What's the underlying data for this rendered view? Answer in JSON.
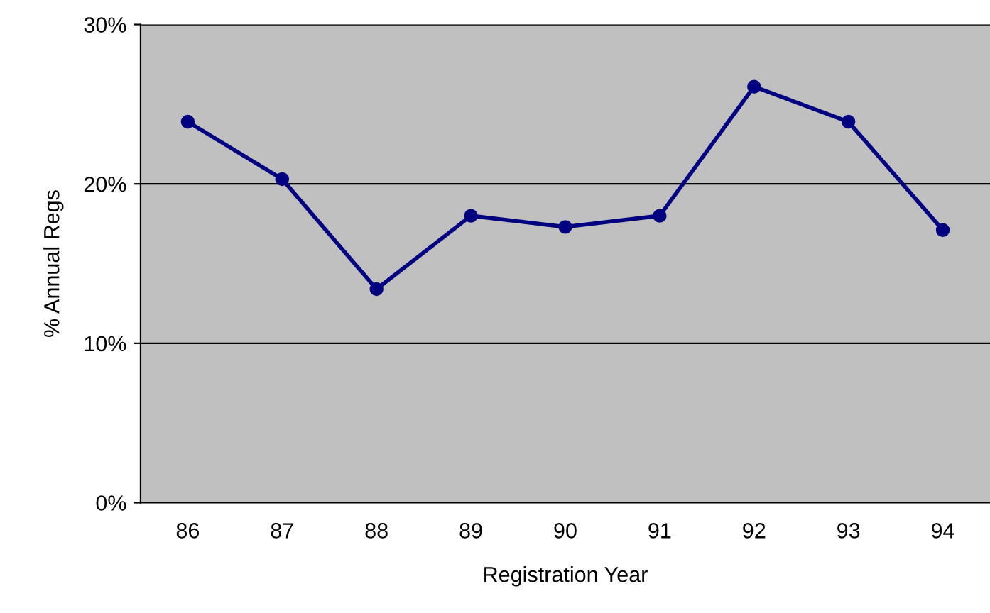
{
  "chart_data": {
    "type": "line",
    "xlabel": "Registration Year",
    "ylabel": "% Annual Regs",
    "categories": [
      "86",
      "87",
      "88",
      "89",
      "90",
      "91",
      "92",
      "93",
      "94"
    ],
    "series": [
      {
        "color": "#000080",
        "values": [
          23.9,
          20.3,
          13.4,
          18.0,
          17.3,
          18.0,
          26.1,
          23.9,
          17.1
        ]
      }
    ],
    "ylim": [
      0,
      30
    ],
    "yticks": [
      {
        "value": 0,
        "label": "0%"
      },
      {
        "value": 10,
        "label": "10%"
      },
      {
        "value": 20,
        "label": "20%"
      },
      {
        "value": 30,
        "label": "30%"
      }
    ],
    "grid": "y",
    "marker": "circle",
    "line_style": "solid",
    "legend": false
  }
}
